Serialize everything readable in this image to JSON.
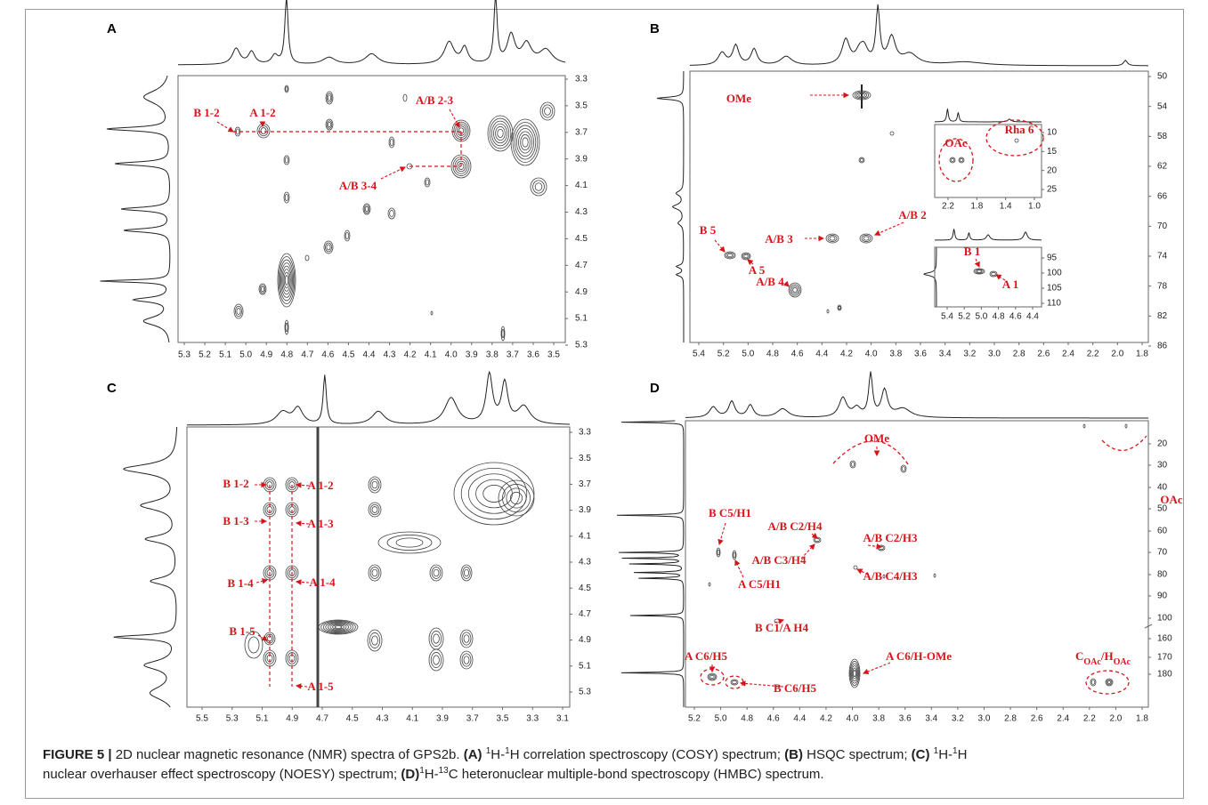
{
  "panels": [
    {
      "label": "A",
      "x_ticks": [
        "5.3",
        "5.2",
        "5.1",
        "5.0",
        "4.9",
        "4.8",
        "4.7",
        "4.6",
        "4.5",
        "4.4",
        "4.3",
        "4.2",
        "4.1",
        "4.0",
        "3.9",
        "3.8",
        "3.7",
        "3.6",
        "3.5"
      ],
      "y_ticks": [
        "3.3",
        "3.5",
        "3.7",
        "3.9",
        "4.1",
        "4.3",
        "4.5",
        "4.7",
        "4.9",
        "5.1",
        "5.3"
      ],
      "annotations": [
        "B 1-2",
        "A 1-2",
        "A/B 2-3",
        "A/B 3-4"
      ]
    },
    {
      "label": "B",
      "x_ticks": [
        "5.4",
        "5.2",
        "5.0",
        "4.8",
        "4.6",
        "4.4",
        "4.2",
        "4.0",
        "3.8",
        "3.6",
        "3.4",
        "3.2",
        "3.0",
        "2.8",
        "2.6",
        "2.4",
        "2.2",
        "2.0",
        "1.8"
      ],
      "y_ticks": [
        "50",
        "54",
        "58",
        "62",
        "66",
        "70",
        "74",
        "78",
        "82",
        "86"
      ],
      "annotations": [
        "OMe",
        "A/B 2",
        "A/B  3",
        "B 5",
        "A 5",
        "A/B 4"
      ],
      "insets": [
        {
          "x_ticks": [
            "2.2",
            "1.8",
            "1.4",
            "1.0"
          ],
          "y_ticks": [
            "10",
            "15",
            "20",
            "25"
          ],
          "annotations": [
            "OAc",
            "Rha 6"
          ]
        },
        {
          "x_ticks": [
            "5.4",
            "5.2",
            "5.0",
            "4.8",
            "4.6",
            "4.4"
          ],
          "y_ticks": [
            "95",
            "100",
            "105",
            "110"
          ],
          "annotations": [
            "B 1",
            "A 1"
          ]
        }
      ]
    },
    {
      "label": "C",
      "x_ticks": [
        "5.5",
        "5.3",
        "5.1",
        "4.9",
        "4.7",
        "4.5",
        "4.3",
        "4.1",
        "3.9",
        "3.7",
        "3.5",
        "3.3",
        "3.1"
      ],
      "y_ticks": [
        "3.3",
        "3.5",
        "3.7",
        "3.9",
        "4.1",
        "4.3",
        "4.5",
        "4.7",
        "4.9",
        "5.1",
        "5.3"
      ],
      "annotations": [
        "B 1-2",
        "A 1-2",
        "B 1-3",
        "A 1-3",
        "B 1-4",
        "A 1-4",
        "B 1-5",
        "A 1-5"
      ]
    },
    {
      "label": "D",
      "x_ticks": [
        "5.2",
        "5.0",
        "4.8",
        "4.6",
        "4.4",
        "4.2",
        "4.0",
        "3.8",
        "3.6",
        "3.4",
        "3.2",
        "3.0",
        "2.8",
        "2.6",
        "2.4",
        "2.2",
        "2.0",
        "1.8"
      ],
      "y_ticks": [
        "20",
        "30",
        "40",
        "50",
        "60",
        "70",
        "80",
        "90",
        "100",
        "160",
        "170",
        "180"
      ],
      "annotations": [
        "OAc",
        "OMe",
        "B C5/H1",
        "A/B C2/H4",
        "A/B C2/H3",
        "A/B C3/H4",
        "A/B C4/H3",
        "A C5/H1",
        "B C1/A H4",
        "A C6/H5",
        "A C6/H-OMe",
        "B C6/H5"
      ],
      "formula_label": [
        "C",
        "OAc",
        "/H",
        "OAc"
      ]
    }
  ],
  "caption": [
    "FIGURE 5 |",
    "2D nuclear magnetic resonance (NMR) spectra of GPS2b.",
    "(A)",
    "1",
    "H-",
    "1",
    "H correlation spectroscopy (COSY) spectrum;",
    "(B)",
    "HSQC spectrum;",
    "(C)",
    "1",
    "H-",
    "1",
    "H",
    "nuclear overhauser effect spectroscopy (NOESY) spectrum;",
    "(D)",
    "1",
    "H-",
    "13",
    "C heteronuclear multiple-bond spectroscopy (HMBC) spectrum."
  ]
}
